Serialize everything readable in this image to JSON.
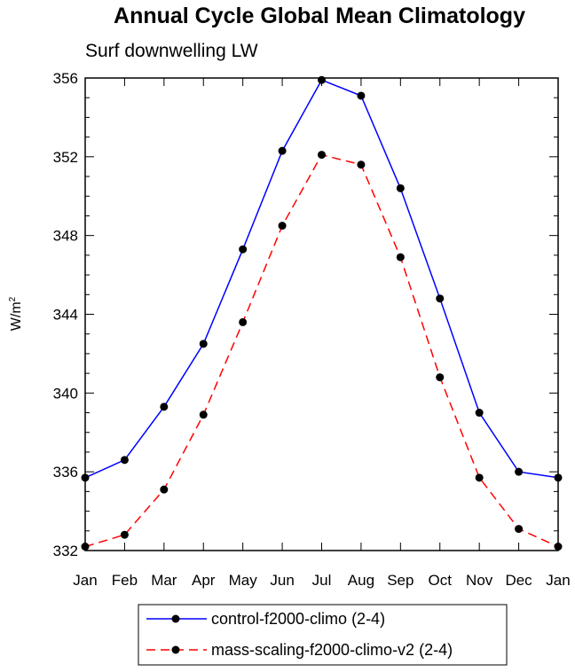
{
  "chart_data": {
    "type": "line",
    "title": "Annual Cycle Global Mean Climatology",
    "subtitle": "Surf downwelling LW",
    "ylabel": "W/m",
    "ylabel_superscript": "2",
    "xlabel": "",
    "categories": [
      "Jan",
      "Feb",
      "Mar",
      "Apr",
      "May",
      "Jun",
      "Jul",
      "Aug",
      "Sep",
      "Oct",
      "Nov",
      "Dec",
      "Jan"
    ],
    "ylim": [
      332,
      356
    ],
    "yticks": [
      332,
      336,
      340,
      344,
      348,
      352,
      356
    ],
    "grid": false,
    "legend_position": "bottom-center",
    "series": [
      {
        "name": "control-f2000-climo (2-4)",
        "color": "#0000ff",
        "dash": "solid",
        "values": [
          335.7,
          336.6,
          339.3,
          342.5,
          347.3,
          352.3,
          355.9,
          355.1,
          350.4,
          344.8,
          339.0,
          336.0,
          335.7
        ]
      },
      {
        "name": "mass-scaling-f2000-climo-v2 (2-4)",
        "color": "#ff0000",
        "dash": "dashed",
        "values": [
          332.2,
          332.8,
          335.1,
          338.9,
          343.6,
          348.5,
          352.1,
          351.6,
          346.9,
          340.8,
          335.7,
          333.1,
          332.2
        ]
      }
    ]
  }
}
